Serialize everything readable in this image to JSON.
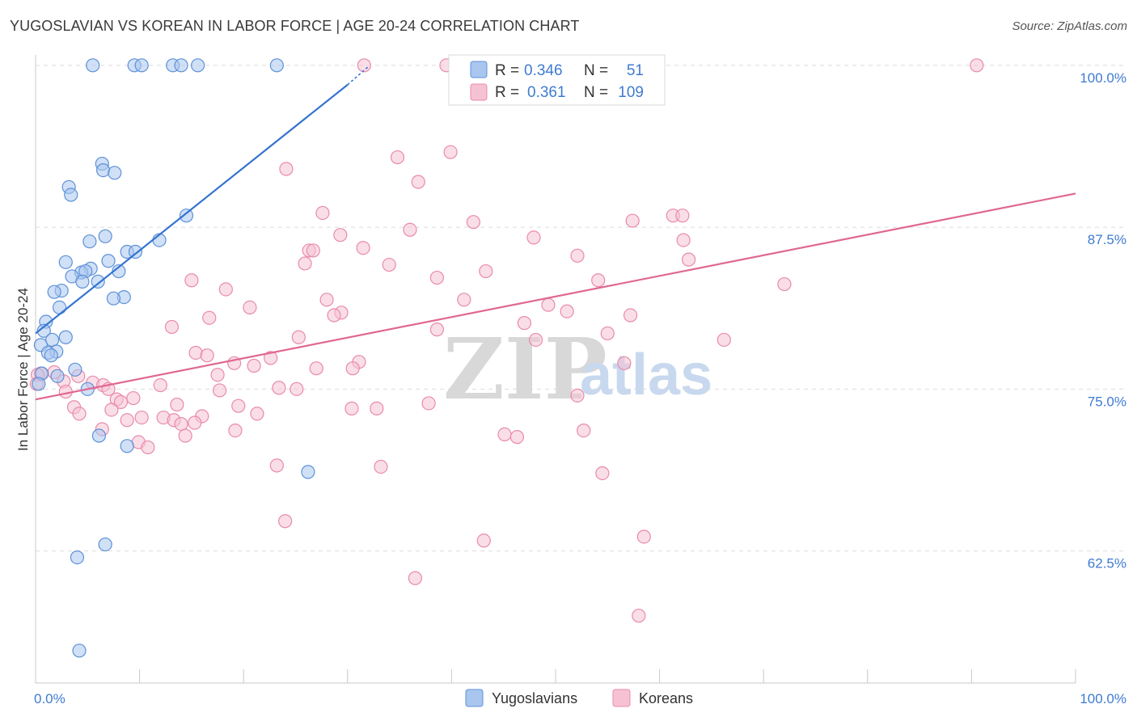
{
  "title": "YUGOSLAVIAN VS KOREAN IN LABOR FORCE | AGE 20-24 CORRELATION CHART",
  "source": "Source: ZipAtlas.com",
  "watermark": {
    "zip": "ZIP",
    "atlas": "atlas"
  },
  "chart_data": {
    "type": "scatter",
    "title": "YUGOSLAVIAN VS KOREAN IN LABOR FORCE | AGE 20-24 CORRELATION CHART",
    "xlabel": "",
    "ylabel": "In Labor Force | Age 20-24",
    "xlim": [
      0,
      100
    ],
    "ylim": [
      52.3,
      101.3
    ],
    "x_tick_labels": [
      "0.0%",
      "100.0%"
    ],
    "y_ticks": [
      62.5,
      75.0,
      87.5,
      100.0
    ],
    "y_tick_labels": [
      "62.5%",
      "75.0%",
      "87.5%",
      "100.0%"
    ],
    "grid": true,
    "legend": {
      "position": "top-center",
      "entries": [
        {
          "r_label": "R =",
          "r_value": "0.346",
          "n_label": "N =",
          "n_value": "51"
        },
        {
          "r_label": "R =",
          "r_value": "0.361",
          "n_label": "N =",
          "n_value": "109"
        }
      ]
    },
    "colors": {
      "yugoslavians_fill": "#a9c6ee",
      "yugoslavians_stroke": "#5d91d8",
      "yugoslavians_line": "#3473d0",
      "koreans_fill": "#f6c2d3",
      "koreans_stroke": "#e98aaa",
      "koreans_line": "#e06793",
      "tick": "#3f7bd1"
    },
    "series": [
      {
        "name": "Yugoslavians",
        "trend": {
          "x": [
            0.0,
            30.0,
            32.0
          ],
          "y": [
            79.3,
            98.5,
            99.9
          ]
        },
        "points": [
          {
            "x": 5.5,
            "y": 100.0
          },
          {
            "x": 9.5,
            "y": 100.0
          },
          {
            "x": 10.2,
            "y": 100.0
          },
          {
            "x": 13.2,
            "y": 100.0
          },
          {
            "x": 14.0,
            "y": 100.0
          },
          {
            "x": 15.6,
            "y": 100.0
          },
          {
            "x": 23.2,
            "y": 100.0
          },
          {
            "x": 6.4,
            "y": 92.4
          },
          {
            "x": 6.5,
            "y": 91.9
          },
          {
            "x": 7.6,
            "y": 91.7
          },
          {
            "x": 3.2,
            "y": 90.6
          },
          {
            "x": 3.4,
            "y": 90.0
          },
          {
            "x": 14.5,
            "y": 88.4
          },
          {
            "x": 6.7,
            "y": 86.8
          },
          {
            "x": 5.2,
            "y": 86.4
          },
          {
            "x": 11.9,
            "y": 86.5
          },
          {
            "x": 8.8,
            "y": 85.6
          },
          {
            "x": 9.6,
            "y": 85.6
          },
          {
            "x": 2.9,
            "y": 84.8
          },
          {
            "x": 7.0,
            "y": 84.9
          },
          {
            "x": 5.3,
            "y": 84.3
          },
          {
            "x": 8.0,
            "y": 84.1
          },
          {
            "x": 4.4,
            "y": 84.0
          },
          {
            "x": 4.8,
            "y": 84.1
          },
          {
            "x": 3.5,
            "y": 83.7
          },
          {
            "x": 4.5,
            "y": 83.3
          },
          {
            "x": 6.0,
            "y": 83.3
          },
          {
            "x": 2.5,
            "y": 82.6
          },
          {
            "x": 1.8,
            "y": 82.5
          },
          {
            "x": 8.5,
            "y": 82.1
          },
          {
            "x": 7.5,
            "y": 82.0
          },
          {
            "x": 2.3,
            "y": 81.3
          },
          {
            "x": 1.0,
            "y": 80.2
          },
          {
            "x": 0.8,
            "y": 79.5
          },
          {
            "x": 2.9,
            "y": 79.0
          },
          {
            "x": 1.6,
            "y": 78.8
          },
          {
            "x": 0.5,
            "y": 78.4
          },
          {
            "x": 2.0,
            "y": 77.9
          },
          {
            "x": 1.2,
            "y": 77.8
          },
          {
            "x": 1.5,
            "y": 77.6
          },
          {
            "x": 3.8,
            "y": 76.5
          },
          {
            "x": 0.6,
            "y": 76.2
          },
          {
            "x": 2.1,
            "y": 76.0
          },
          {
            "x": 0.3,
            "y": 75.4
          },
          {
            "x": 5.0,
            "y": 75.0
          },
          {
            "x": 6.1,
            "y": 71.4
          },
          {
            "x": 8.8,
            "y": 70.6
          },
          {
            "x": 26.2,
            "y": 68.6
          },
          {
            "x": 6.7,
            "y": 63.0
          },
          {
            "x": 4.0,
            "y": 62.0
          },
          {
            "x": 4.2,
            "y": 54.8
          }
        ]
      },
      {
        "name": "Koreans",
        "trend": {
          "x": [
            0.0,
            100.0
          ],
          "y": [
            74.2,
            90.1
          ]
        },
        "points": [
          {
            "x": 31.6,
            "y": 100.0
          },
          {
            "x": 39.5,
            "y": 100.0
          },
          {
            "x": 40.5,
            "y": 100.0
          },
          {
            "x": 90.5,
            "y": 100.0
          },
          {
            "x": 39.9,
            "y": 93.3
          },
          {
            "x": 34.8,
            "y": 92.9
          },
          {
            "x": 24.1,
            "y": 92.0
          },
          {
            "x": 36.8,
            "y": 91.0
          },
          {
            "x": 27.6,
            "y": 88.6
          },
          {
            "x": 42.1,
            "y": 87.9
          },
          {
            "x": 57.4,
            "y": 88.0
          },
          {
            "x": 61.3,
            "y": 88.4
          },
          {
            "x": 62.2,
            "y": 88.4
          },
          {
            "x": 36.0,
            "y": 87.3
          },
          {
            "x": 29.3,
            "y": 86.9
          },
          {
            "x": 47.9,
            "y": 86.7
          },
          {
            "x": 62.3,
            "y": 86.5
          },
          {
            "x": 31.5,
            "y": 85.9
          },
          {
            "x": 26.3,
            "y": 85.7
          },
          {
            "x": 26.7,
            "y": 85.7
          },
          {
            "x": 52.1,
            "y": 85.3
          },
          {
            "x": 62.8,
            "y": 85.0
          },
          {
            "x": 25.9,
            "y": 84.7
          },
          {
            "x": 34.0,
            "y": 84.6
          },
          {
            "x": 43.3,
            "y": 84.1
          },
          {
            "x": 38.6,
            "y": 83.6
          },
          {
            "x": 15.0,
            "y": 83.4
          },
          {
            "x": 54.1,
            "y": 83.4
          },
          {
            "x": 72.0,
            "y": 83.1
          },
          {
            "x": 18.3,
            "y": 82.7
          },
          {
            "x": 28.0,
            "y": 81.9
          },
          {
            "x": 41.2,
            "y": 81.9
          },
          {
            "x": 20.6,
            "y": 81.3
          },
          {
            "x": 49.3,
            "y": 81.5
          },
          {
            "x": 51.1,
            "y": 81.0
          },
          {
            "x": 29.4,
            "y": 80.9
          },
          {
            "x": 28.7,
            "y": 80.7
          },
          {
            "x": 57.2,
            "y": 80.7
          },
          {
            "x": 16.7,
            "y": 80.5
          },
          {
            "x": 47.0,
            "y": 80.1
          },
          {
            "x": 13.1,
            "y": 79.8
          },
          {
            "x": 38.6,
            "y": 79.6
          },
          {
            "x": 55.0,
            "y": 79.3
          },
          {
            "x": 25.3,
            "y": 79.0
          },
          {
            "x": 66.2,
            "y": 78.8
          },
          {
            "x": 48.1,
            "y": 78.8
          },
          {
            "x": 15.4,
            "y": 77.8
          },
          {
            "x": 16.5,
            "y": 77.6
          },
          {
            "x": 22.6,
            "y": 77.4
          },
          {
            "x": 31.1,
            "y": 77.1
          },
          {
            "x": 19.1,
            "y": 77.0
          },
          {
            "x": 21.0,
            "y": 76.8
          },
          {
            "x": 56.6,
            "y": 77.0
          },
          {
            "x": 27.0,
            "y": 76.6
          },
          {
            "x": 30.5,
            "y": 76.6
          },
          {
            "x": 1.8,
            "y": 76.3
          },
          {
            "x": 0.5,
            "y": 76.2
          },
          {
            "x": 4.1,
            "y": 76.0
          },
          {
            "x": 17.5,
            "y": 76.1
          },
          {
            "x": 2.7,
            "y": 75.6
          },
          {
            "x": 5.5,
            "y": 75.5
          },
          {
            "x": 12.0,
            "y": 75.3
          },
          {
            "x": 6.5,
            "y": 75.3
          },
          {
            "x": 7.0,
            "y": 75.0
          },
          {
            "x": 23.4,
            "y": 75.1
          },
          {
            "x": 25.1,
            "y": 75.0
          },
          {
            "x": 17.7,
            "y": 74.9
          },
          {
            "x": 2.9,
            "y": 74.8
          },
          {
            "x": 52.1,
            "y": 74.5
          },
          {
            "x": 9.4,
            "y": 74.3
          },
          {
            "x": 7.8,
            "y": 74.2
          },
          {
            "x": 8.2,
            "y": 74.0
          },
          {
            "x": 37.8,
            "y": 73.9
          },
          {
            "x": 13.6,
            "y": 73.8
          },
          {
            "x": 19.5,
            "y": 73.7
          },
          {
            "x": 3.7,
            "y": 73.6
          },
          {
            "x": 30.4,
            "y": 73.5
          },
          {
            "x": 32.8,
            "y": 73.5
          },
          {
            "x": 7.3,
            "y": 73.4
          },
          {
            "x": 4.2,
            "y": 73.1
          },
          {
            "x": 21.3,
            "y": 73.1
          },
          {
            "x": 16.0,
            "y": 72.9
          },
          {
            "x": 12.3,
            "y": 72.8
          },
          {
            "x": 10.2,
            "y": 72.8
          },
          {
            "x": 8.8,
            "y": 72.6
          },
          {
            "x": 13.3,
            "y": 72.6
          },
          {
            "x": 14.0,
            "y": 72.3
          },
          {
            "x": 15.3,
            "y": 72.4
          },
          {
            "x": 6.4,
            "y": 71.9
          },
          {
            "x": 19.2,
            "y": 71.8
          },
          {
            "x": 52.7,
            "y": 71.8
          },
          {
            "x": 14.4,
            "y": 71.4
          },
          {
            "x": 45.1,
            "y": 71.5
          },
          {
            "x": 46.3,
            "y": 71.3
          },
          {
            "x": 9.9,
            "y": 70.9
          },
          {
            "x": 10.8,
            "y": 70.5
          },
          {
            "x": 23.2,
            "y": 69.1
          },
          {
            "x": 33.2,
            "y": 69.0
          },
          {
            "x": 54.5,
            "y": 68.5
          },
          {
            "x": 24.0,
            "y": 64.8
          },
          {
            "x": 58.5,
            "y": 63.6
          },
          {
            "x": 43.1,
            "y": 63.3
          },
          {
            "x": 36.5,
            "y": 60.4
          },
          {
            "x": 58.0,
            "y": 57.5
          },
          {
            "x": 0.2,
            "y": 76.1
          },
          {
            "x": 0.1,
            "y": 75.4
          }
        ]
      }
    ]
  },
  "bottom_legend": [
    {
      "label": "Yugoslavians"
    },
    {
      "label": "Koreans"
    }
  ]
}
